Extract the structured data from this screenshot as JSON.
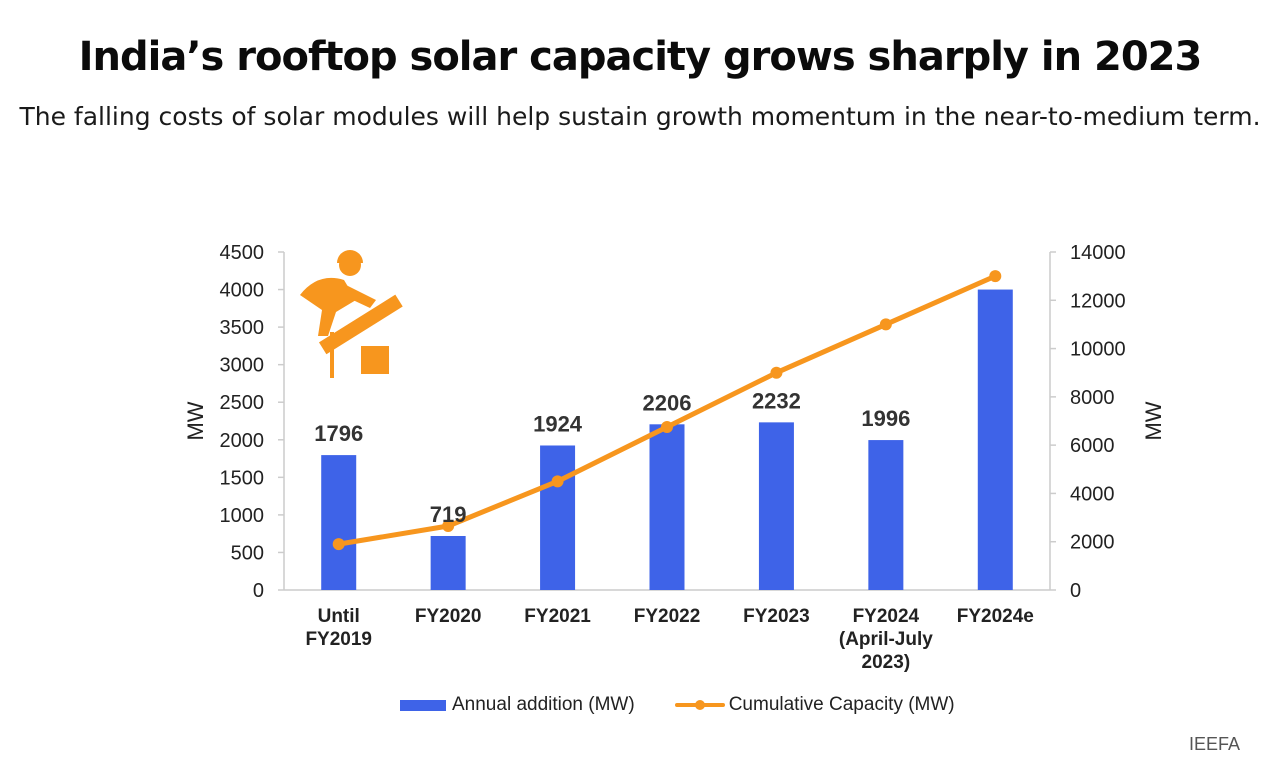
{
  "title": "India’s rooftop solar capacity grows sharply in 2023",
  "subtitle": "The falling costs of solar modules will help sustain growth momentum in the near-to-medium term.",
  "source": "IEEFA",
  "colors": {
    "bar": "#3e63e8",
    "line": "#f7961e",
    "axis": "#cccccc",
    "icon": "#f7961e"
  },
  "icon": "rooftop-solar-installer-icon",
  "chart_data": {
    "type": "bar",
    "categories": [
      "Until FY2019",
      "FY2020",
      "FY2021",
      "FY2022",
      "FY2023",
      "FY2024 (April-July 2023)",
      "FY2024e"
    ],
    "category_lines": [
      [
        "Until",
        "FY2019"
      ],
      [
        "FY2020"
      ],
      [
        "FY2021"
      ],
      [
        "FY2022"
      ],
      [
        "FY2023"
      ],
      [
        "FY2024",
        "(April-July",
        "2023)"
      ],
      [
        "FY2024e"
      ]
    ],
    "series": [
      {
        "name": "Annual addition (MW)",
        "type": "bar",
        "axis": "left",
        "values": [
          1796,
          719,
          1924,
          2206,
          2232,
          1996,
          4000
        ],
        "data_labels": [
          "1796",
          "719",
          "1924",
          "2206",
          "2232",
          "1996",
          ""
        ]
      },
      {
        "name": "Cumulative Capacity (MW)",
        "type": "line",
        "axis": "right",
        "values": [
          1900,
          2650,
          4500,
          6750,
          9000,
          11000,
          13000
        ]
      }
    ],
    "y_left": {
      "label": "MW",
      "min": 0,
      "max": 4500,
      "ticks": [
        0,
        500,
        1000,
        1500,
        2000,
        2500,
        3000,
        3500,
        4000,
        4500
      ]
    },
    "y_right": {
      "label": "MW",
      "min": 0,
      "max": 14000,
      "ticks": [
        0,
        2000,
        4000,
        6000,
        8000,
        10000,
        12000,
        14000
      ]
    },
    "legend": [
      "Annual addition (MW)",
      "Cumulative Capacity (MW)"
    ],
    "legend_position": "bottom",
    "grid": false
  }
}
